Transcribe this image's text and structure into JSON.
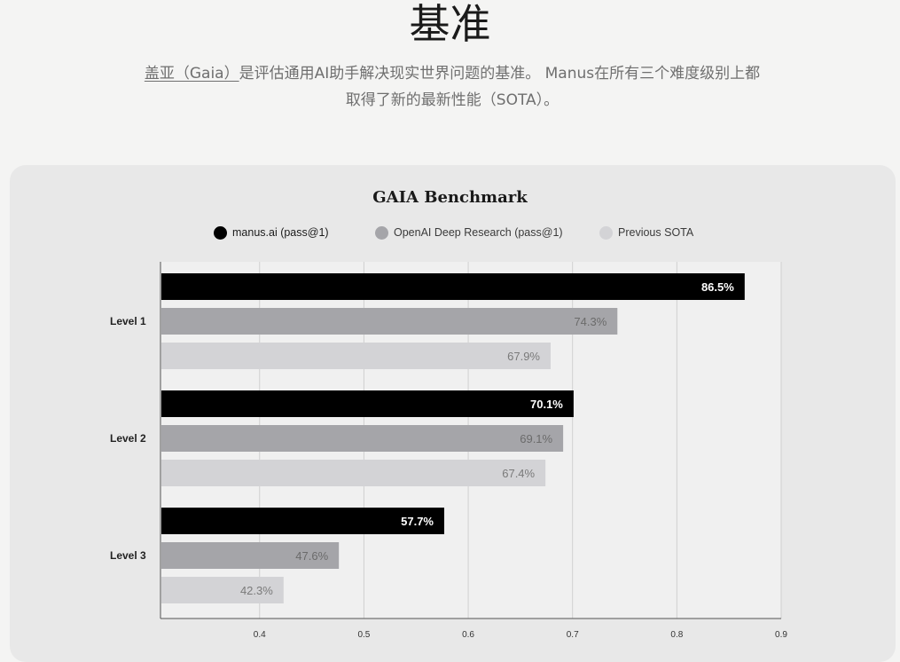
{
  "header": {
    "title": "基准",
    "intro_link": "盖亚（Gaia）",
    "intro_rest": "是评估通用AI助手解决现实世界问题的基准。 Manus在所有三个难度级别上都取得了新的最新性能（SOTA）。"
  },
  "colors": {
    "manus": "#000000",
    "openai": "#a5a5a9",
    "previous": "#d3d3d6",
    "card_bg": "#e8e8e8",
    "plot_bg": "#f0f0f0",
    "grid": "#d0d0d0"
  },
  "chart_data": {
    "type": "bar",
    "orientation": "horizontal",
    "title": "GAIA Benchmark",
    "categories": [
      "Level 1",
      "Level 2",
      "Level 3"
    ],
    "series": [
      {
        "name": "manus.ai (pass@1)",
        "values": [
          86.5,
          70.1,
          57.7
        ],
        "labels": [
          "86.5%",
          "70.1%",
          "57.7%"
        ],
        "color": "#000000"
      },
      {
        "name": "OpenAI Deep Research (pass@1)",
        "values": [
          74.3,
          69.1,
          47.6
        ],
        "labels": [
          "74.3%",
          "69.1%",
          "47.6%"
        ],
        "color": "#a5a5a9"
      },
      {
        "name": "Previous SOTA",
        "values": [
          67.9,
          67.4,
          42.3
        ],
        "labels": [
          "67.9%",
          "67.4%",
          "42.3%"
        ],
        "color": "#d3d3d6"
      }
    ],
    "x_ticks": [
      "0.4",
      "0.5",
      "0.6",
      "0.7",
      "0.8",
      "0.9"
    ],
    "x_tick_values": [
      0.4,
      0.5,
      0.6,
      0.7,
      0.8,
      0.9
    ],
    "xlim": [
      0.305,
      0.9
    ],
    "xlabel": "",
    "ylabel": "",
    "legend_position": "top",
    "grid": true
  }
}
